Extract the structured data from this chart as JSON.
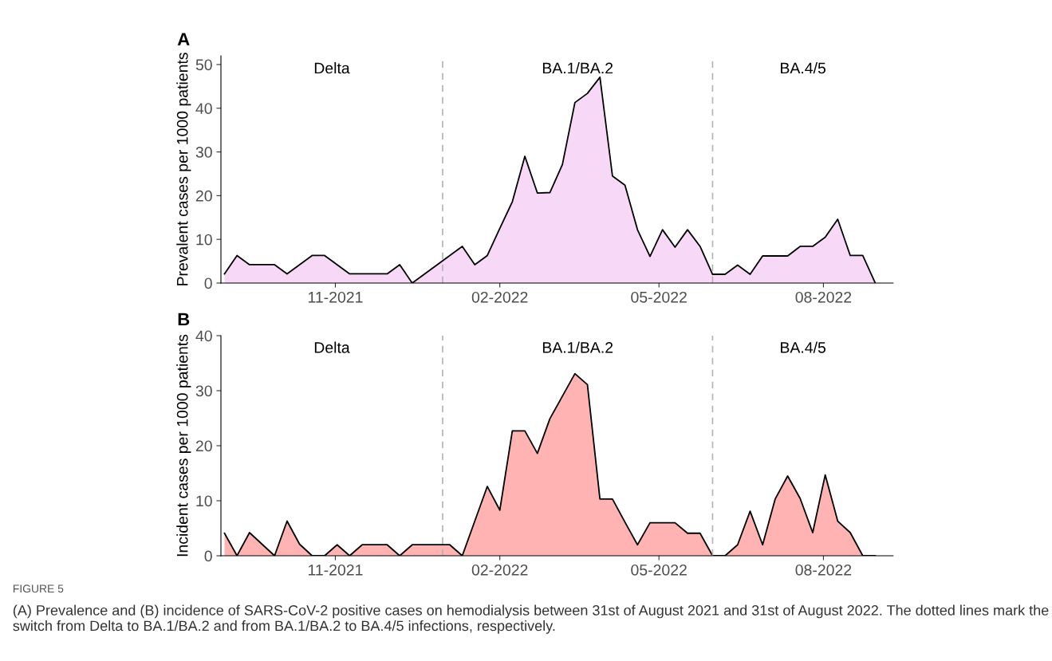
{
  "chart_data": [
    {
      "type": "area",
      "title": "A",
      "ylabel": "Prevalent cases per 1000 patients",
      "x": [
        "2021-08-31",
        "2021-09-07",
        "2021-09-14",
        "2021-09-21",
        "2021-09-28",
        "2021-10-05",
        "2021-10-12",
        "2021-10-19",
        "2021-10-26",
        "2021-11-02",
        "2021-11-09",
        "2021-11-16",
        "2021-11-23",
        "2021-11-30",
        "2021-12-07",
        "2021-12-14",
        "2021-12-21",
        "2021-12-28",
        "2022-01-04",
        "2022-01-11",
        "2022-01-18",
        "2022-01-25",
        "2022-02-01",
        "2022-02-08",
        "2022-02-15",
        "2022-02-22",
        "2022-03-01",
        "2022-03-08",
        "2022-03-15",
        "2022-03-22",
        "2022-03-29",
        "2022-04-05",
        "2022-04-12",
        "2022-04-19",
        "2022-04-26",
        "2022-05-03",
        "2022-05-10",
        "2022-05-17",
        "2022-05-24",
        "2022-05-31",
        "2022-06-07",
        "2022-06-14",
        "2022-06-21",
        "2022-06-28",
        "2022-07-05",
        "2022-07-12",
        "2022-07-19",
        "2022-07-26",
        "2022-08-02",
        "2022-08-09",
        "2022-08-16",
        "2022-08-23",
        "2022-08-30"
      ],
      "series": [
        {
          "color": "#f7d8f6",
          "values": [
            2.1,
            6.3,
            4.2,
            4.2,
            4.2,
            2.1,
            4.2,
            6.3,
            6.3,
            4.2,
            2.1,
            2.1,
            2.1,
            2.1,
            4.2,
            0,
            2.1,
            4.2,
            6.3,
            8.4,
            4.2,
            6.3,
            12.5,
            18.6,
            29.0,
            20.6,
            20.7,
            27.1,
            41.3,
            43.4,
            47.1,
            24.5,
            22.4,
            12.2,
            6.1,
            12.2,
            8.2,
            12.2,
            8.4,
            2.0,
            2.0,
            4.1,
            2.0,
            6.2,
            6.2,
            6.2,
            8.4,
            8.4,
            10.5,
            14.6,
            6.3,
            6.3,
            0
          ]
        }
      ],
      "xlim": [
        "2021-08-29",
        "2022-09-09"
      ],
      "ylim": [
        0,
        52
      ],
      "xticks": [
        {
          "value": "2021-11-01",
          "label": "11-2021"
        },
        {
          "value": "2022-02-01",
          "label": "02-2022"
        },
        {
          "value": "2022-05-01",
          "label": "05-2022"
        },
        {
          "value": "2022-08-01",
          "label": "08-2022"
        }
      ],
      "yticks": [
        0,
        10,
        20,
        30,
        40,
        50
      ],
      "ref_lines": [
        {
          "axis": "x",
          "value": "2021-12-31",
          "color": "#b3b3b3",
          "line_style": "dashed"
        },
        {
          "axis": "x",
          "value": "2022-05-31",
          "color": "#b3b3b3",
          "line_style": "dashed"
        }
      ],
      "annotations": [
        "Delta",
        "BA.1/BA.2",
        "BA.4/5"
      ],
      "grid": false,
      "legend": false
    },
    {
      "type": "area",
      "title": "B",
      "ylabel": "Incident cases per 1000 patients",
      "x": [
        "2021-08-31",
        "2021-09-07",
        "2021-09-14",
        "2021-09-21",
        "2021-09-28",
        "2021-10-05",
        "2021-10-12",
        "2021-10-19",
        "2021-10-26",
        "2021-11-02",
        "2021-11-09",
        "2021-11-16",
        "2021-11-23",
        "2021-11-30",
        "2021-12-07",
        "2021-12-14",
        "2021-12-21",
        "2021-12-28",
        "2022-01-04",
        "2022-01-11",
        "2022-01-18",
        "2022-01-25",
        "2022-02-01",
        "2022-02-08",
        "2022-02-15",
        "2022-02-22",
        "2022-03-01",
        "2022-03-08",
        "2022-03-15",
        "2022-03-22",
        "2022-03-29",
        "2022-04-05",
        "2022-04-12",
        "2022-04-19",
        "2022-04-26",
        "2022-05-03",
        "2022-05-10",
        "2022-05-17",
        "2022-05-24",
        "2022-05-31",
        "2022-06-07",
        "2022-06-14",
        "2022-06-21",
        "2022-06-28",
        "2022-07-05",
        "2022-07-12",
        "2022-07-19",
        "2022-07-26",
        "2022-08-02",
        "2022-08-09",
        "2022-08-16",
        "2022-08-23",
        "2022-08-30"
      ],
      "series": [
        {
          "color": "#ffb3b3",
          "values": [
            4.1,
            0,
            4.2,
            2.1,
            0,
            6.3,
            2.1,
            0,
            0,
            2.0,
            0,
            2.0,
            2.0,
            2.0,
            0,
            2.0,
            2.0,
            2.0,
            2.0,
            0,
            6.3,
            12.6,
            8.3,
            22.7,
            22.7,
            18.6,
            24.9,
            29.0,
            33.1,
            31.1,
            10.3,
            10.3,
            6.1,
            2.0,
            6.0,
            6.0,
            6.0,
            4.1,
            4.1,
            0,
            0,
            2.0,
            8.1,
            2.0,
            10.3,
            14.5,
            10.4,
            4.2,
            14.7,
            6.3,
            4.2,
            0,
            0
          ]
        }
      ],
      "xlim": [
        "2021-08-29",
        "2022-09-09"
      ],
      "ylim": [
        0,
        40
      ],
      "xticks": [
        {
          "value": "2021-11-01",
          "label": "11-2021"
        },
        {
          "value": "2022-02-01",
          "label": "02-2022"
        },
        {
          "value": "2022-05-01",
          "label": "05-2022"
        },
        {
          "value": "2022-08-01",
          "label": "08-2022"
        }
      ],
      "yticks": [
        0,
        10,
        20,
        30,
        40
      ],
      "ref_lines": [
        {
          "axis": "x",
          "value": "2021-12-31",
          "color": "#b3b3b3",
          "line_style": "dashed"
        },
        {
          "axis": "x",
          "value": "2022-05-31",
          "color": "#b3b3b3",
          "line_style": "dashed"
        }
      ],
      "annotations": [
        "Delta",
        "BA.1/BA.2",
        "BA.4/5",
        "FIGURE 5",
        "(A) Prevalence and (B) incidence of SARS-CoV-2 positive cases on hemodialysis between 31st of August 2021 and 31st of August 2022. The dotted lines mark the switch from Delta to BA.1/BA.2 and from BA.1/BA.2 to BA.4/5 infections, respectively."
      ],
      "grid": false,
      "legend": false
    }
  ]
}
